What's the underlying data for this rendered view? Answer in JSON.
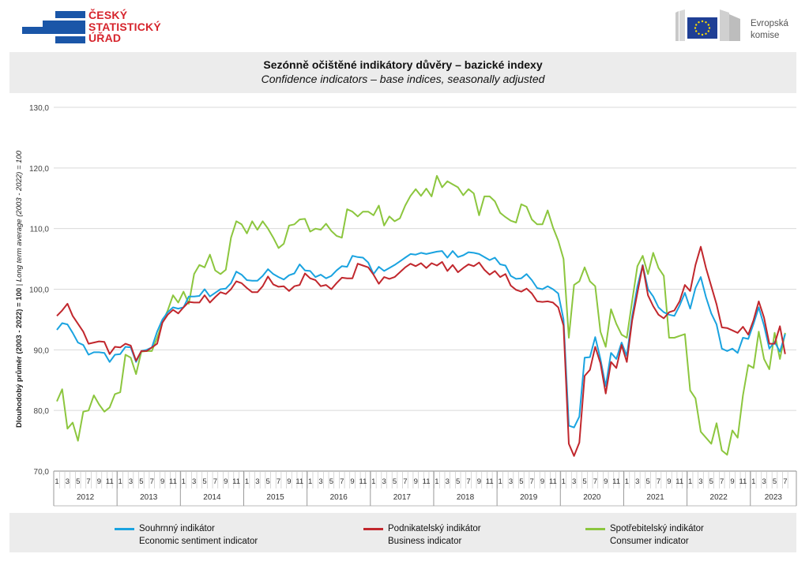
{
  "header": {
    "czso_logo_lines": [
      "ČESKÝ",
      "STATISTICKÝ",
      "ÚŘAD"
    ],
    "ec_logo_lines": [
      "Evropská",
      "komise"
    ]
  },
  "chart_data": {
    "type": "line",
    "title": "Sezónně očištěné indikátory důvěry – bazické indexy",
    "subtitle": "Confidence indicators – base indices, seasonally adjusted",
    "ylabel": "Dlouhodobý průměr (2003 - 2022) = 100",
    "ylabel_en": "Long term average (2003 - 2022) = 100",
    "ylim": [
      70,
      130
    ],
    "yticks": [
      "70,0",
      "80,0",
      "90,0",
      "100,0",
      "110,0",
      "120,0",
      "130,0"
    ],
    "grid": "horizontal",
    "legend_position": "bottom",
    "x_month_labels": [
      "1",
      "3",
      "5",
      "7",
      "9",
      "11"
    ],
    "years": [
      "2012",
      "2013",
      "2014",
      "2015",
      "2016",
      "2017",
      "2018",
      "2019",
      "2020",
      "2021",
      "2022",
      "2023"
    ],
    "period": "2012-01 to 2023-09 (monthly)",
    "series": [
      {
        "name": "Souhrnný indikátor",
        "name_en": "Economic sentiment indicator",
        "color": "#1aa3e0",
        "values": [
          93.3,
          94.4,
          94.2,
          92.8,
          91.2,
          90.8,
          89.2,
          89.6,
          89.6,
          89.5,
          88.0,
          89.2,
          89.3,
          90.5,
          90.4,
          88.0,
          89.8,
          90.0,
          90.4,
          93.0,
          95.0,
          96.2,
          97.0,
          96.8,
          97.0,
          98.8,
          98.8,
          98.9,
          100.0,
          98.8,
          99.4,
          100.0,
          100.1,
          101.0,
          102.9,
          102.4,
          101.5,
          101.4,
          101.4,
          102.2,
          103.3,
          102.5,
          102.0,
          101.6,
          102.3,
          102.6,
          104.1,
          103.1,
          103.0,
          102.0,
          102.4,
          101.8,
          102.2,
          103.1,
          103.8,
          103.7,
          105.5,
          105.3,
          105.2,
          104.4,
          102.5,
          103.7,
          103.0,
          103.5,
          104.0,
          104.6,
          105.2,
          105.8,
          105.7,
          106.0,
          105.8,
          106.0,
          106.2,
          106.3,
          105.2,
          106.3,
          105.3,
          105.6,
          106.1,
          106.0,
          105.8,
          105.3,
          104.8,
          105.2,
          104.1,
          103.9,
          102.2,
          101.7,
          101.8,
          102.5,
          101.5,
          100.2,
          100.0,
          100.5,
          100.0,
          99.3,
          95.0,
          77.5,
          77.2,
          79.0,
          88.7,
          88.8,
          92.1,
          88.5,
          84.0,
          89.5,
          88.5,
          91.2,
          89.0,
          95.5,
          100.5,
          104.0,
          100.0,
          98.8,
          97.0,
          96.2,
          95.8,
          95.6,
          97.3,
          99.4,
          96.8,
          100.2,
          102.0,
          98.7,
          96.0,
          94.2,
          90.2,
          89.8,
          90.2,
          89.5,
          92.0,
          91.8,
          94.3,
          97.0,
          94.0,
          90.2,
          91.3,
          89.7,
          92.6
        ]
      },
      {
        "name": "Podnikatelský indikátor",
        "name_en": "Business indicator",
        "color": "#c1272d",
        "values": [
          95.6,
          96.5,
          97.6,
          95.6,
          94.3,
          93.0,
          91.0,
          91.2,
          91.4,
          91.3,
          89.3,
          90.5,
          90.4,
          91.0,
          90.7,
          88.2,
          89.8,
          89.8,
          90.4,
          91.0,
          94.5,
          95.8,
          96.6,
          96.0,
          97.0,
          97.9,
          97.8,
          97.8,
          99.0,
          97.8,
          98.7,
          99.5,
          99.2,
          100.0,
          101.3,
          101.0,
          100.2,
          99.5,
          99.5,
          100.5,
          102.1,
          100.8,
          100.4,
          100.5,
          99.7,
          100.5,
          100.7,
          102.6,
          101.8,
          101.5,
          100.5,
          100.7,
          100.0,
          101.0,
          101.9,
          101.8,
          101.8,
          104.2,
          103.9,
          103.6,
          102.4,
          100.9,
          102.0,
          101.7,
          102.0,
          102.8,
          103.6,
          104.2,
          103.8,
          104.3,
          103.5,
          104.3,
          103.9,
          104.5,
          103.0,
          104.0,
          102.8,
          103.5,
          104.1,
          103.8,
          104.4,
          103.2,
          102.4,
          103.0,
          102.0,
          102.5,
          100.6,
          99.9,
          99.6,
          100.1,
          99.3,
          98.0,
          97.9,
          98.0,
          97.8,
          97.0,
          94.0,
          74.5,
          72.5,
          74.7,
          85.7,
          86.7,
          90.5,
          87.8,
          82.8,
          88.0,
          87.0,
          90.8,
          88.0,
          94.8,
          99.4,
          103.9,
          99.0,
          97.2,
          95.8,
          95.2,
          96.2,
          96.5,
          98.0,
          100.7,
          99.7,
          104.0,
          107.0,
          103.5,
          100.5,
          97.5,
          93.7,
          93.6,
          93.2,
          92.8,
          93.8,
          92.5,
          94.9,
          98.0,
          95.3,
          91.0,
          91.0,
          93.9,
          89.3
        ]
      },
      {
        "name": "Spotřebitelský indikátor",
        "name_en": "Consumer indicator",
        "color": "#8cc63e",
        "values": [
          81.5,
          83.5,
          77.0,
          78.0,
          75.0,
          79.8,
          80.0,
          82.5,
          81.0,
          79.8,
          80.5,
          82.7,
          83.0,
          89.2,
          88.7,
          86.0,
          89.7,
          89.8,
          89.8,
          92.0,
          94.5,
          96.5,
          99.0,
          97.8,
          99.6,
          97.6,
          102.5,
          104.0,
          103.6,
          105.7,
          103.1,
          102.5,
          103.2,
          108.5,
          111.2,
          110.7,
          109.2,
          111.2,
          109.8,
          111.2,
          110.0,
          108.5,
          106.8,
          107.5,
          110.5,
          110.7,
          111.5,
          111.6,
          109.5,
          110.0,
          109.8,
          110.8,
          109.6,
          108.8,
          108.5,
          113.2,
          112.8,
          112.0,
          112.8,
          112.8,
          112.2,
          113.8,
          110.5,
          112.0,
          111.2,
          111.7,
          113.8,
          115.4,
          116.5,
          115.4,
          116.6,
          115.3,
          118.7,
          116.8,
          117.8,
          117.3,
          116.8,
          115.5,
          116.5,
          115.8,
          112.2,
          115.3,
          115.3,
          114.5,
          112.6,
          111.9,
          111.3,
          111.0,
          114.0,
          113.6,
          111.5,
          110.7,
          110.7,
          113.0,
          110.2,
          108.0,
          105.0,
          92.0,
          100.7,
          101.3,
          103.6,
          101.3,
          100.5,
          93.0,
          90.5,
          96.7,
          94.3,
          92.5,
          92.0,
          98.0,
          103.8,
          105.5,
          102.5,
          106.0,
          103.5,
          102.2,
          92.0,
          92.0,
          92.3,
          92.6,
          83.3,
          82.0,
          76.5,
          75.5,
          74.5,
          77.9,
          73.4,
          72.7,
          76.7,
          75.5,
          82.5,
          87.5,
          87.0,
          93.0,
          88.5,
          86.8,
          92.8,
          88.5,
          92.8
        ]
      }
    ]
  }
}
